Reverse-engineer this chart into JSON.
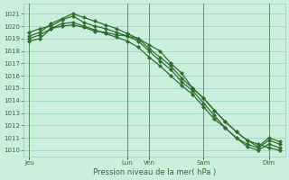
{
  "xlabel": "Pression niveau de la mer( hPa )",
  "bg_color": "#cceedd",
  "grid_color": "#99ccbb",
  "line_color": "#2d6e2d",
  "ylim": [
    1009.5,
    1021.8
  ],
  "yticks": [
    1010,
    1011,
    1012,
    1013,
    1014,
    1015,
    1016,
    1017,
    1018,
    1019,
    1020,
    1021
  ],
  "xtick_labels": [
    "Jeu",
    "Lun",
    "Ven",
    "Sam",
    "Dim"
  ],
  "xtick_pos": [
    0,
    9,
    11,
    16,
    22
  ],
  "vline_pos": [
    0,
    9,
    11,
    16,
    22
  ],
  "num_points": 24,
  "series": [
    [
      1018.8,
      1019.0,
      1019.8,
      1020.0,
      1020.1,
      1019.9,
      1019.6,
      1019.5,
      1019.3,
      1019.2,
      1019.0,
      1018.5,
      1018.0,
      1017.0,
      1016.2,
      1015.0,
      1014.2,
      1013.2,
      1012.3,
      1011.5,
      1010.8,
      1010.5,
      1010.2,
      1010.0
    ],
    [
      1019.5,
      1019.8,
      1020.0,
      1020.5,
      1020.8,
      1020.3,
      1020.0,
      1019.8,
      1019.5,
      1019.2,
      1018.8,
      1018.0,
      1017.2,
      1016.5,
      1015.5,
      1014.8,
      1013.8,
      1012.8,
      1011.8,
      1011.0,
      1010.5,
      1010.2,
      1010.8,
      1010.5
    ],
    [
      1019.2,
      1019.5,
      1020.2,
      1020.6,
      1021.0,
      1020.7,
      1020.4,
      1020.1,
      1019.8,
      1019.4,
      1019.0,
      1018.2,
      1017.5,
      1016.8,
      1015.8,
      1015.0,
      1014.2,
      1013.2,
      1012.3,
      1011.5,
      1010.8,
      1010.3,
      1011.0,
      1010.7
    ],
    [
      1019.0,
      1019.3,
      1019.8,
      1020.2,
      1020.3,
      1020.0,
      1019.7,
      1019.4,
      1019.1,
      1018.8,
      1018.3,
      1017.5,
      1016.8,
      1016.0,
      1015.2,
      1014.5,
      1013.5,
      1012.5,
      1011.8,
      1011.0,
      1010.3,
      1010.0,
      1010.5,
      1010.2
    ]
  ],
  "marker": "D",
  "marker_size": 2.2,
  "line_width": 0.9,
  "xlabel_fontsize": 6.0,
  "tick_fontsize": 5.0
}
